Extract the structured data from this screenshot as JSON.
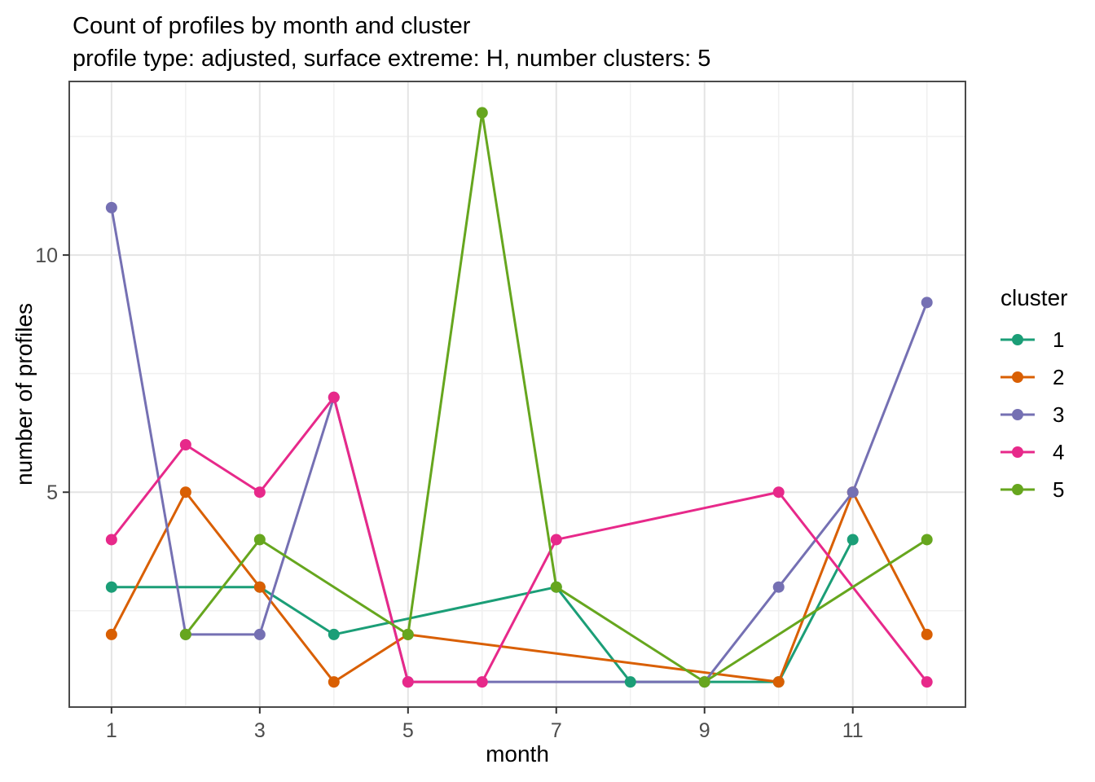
{
  "chart_data": {
    "type": "line",
    "title": "Count of profiles by month and cluster",
    "subtitle": "profile type: adjusted, surface extreme: H, number clusters: 5",
    "xlabel": "month",
    "ylabel": "number of profiles",
    "legend_title": "cluster",
    "legend_position": "right",
    "grid": true,
    "xlim": [
      0.43,
      12.52
    ],
    "ylim": [
      0.47,
      13.66
    ],
    "x_major_ticks": [
      1,
      3,
      5,
      7,
      9,
      11
    ],
    "x_minor_gridlines": [
      2,
      4,
      6,
      8,
      10,
      12
    ],
    "y_major_ticks": [
      5,
      10
    ],
    "y_minor_gridlines": [
      2.5,
      7.5,
      12.5
    ],
    "series": [
      {
        "name": "1",
        "color": "#1B9E77",
        "points": [
          [
            1,
            3
          ],
          [
            3,
            3
          ],
          [
            4,
            2
          ],
          [
            7,
            3
          ],
          [
            8,
            1
          ],
          [
            10,
            1
          ],
          [
            11,
            4
          ]
        ]
      },
      {
        "name": "2",
        "color": "#D95F02",
        "points": [
          [
            1,
            2
          ],
          [
            2,
            5
          ],
          [
            3,
            3
          ],
          [
            4,
            1
          ],
          [
            5,
            2
          ],
          [
            10,
            1
          ],
          [
            11,
            5
          ],
          [
            12,
            2
          ]
        ]
      },
      {
        "name": "3",
        "color": "#7570B3",
        "points": [
          [
            1,
            11
          ],
          [
            2,
            2
          ],
          [
            3,
            2
          ],
          [
            4,
            7
          ],
          [
            5,
            1
          ],
          [
            9,
            1
          ],
          [
            10,
            3
          ],
          [
            11,
            5
          ],
          [
            12,
            9
          ]
        ]
      },
      {
        "name": "4",
        "color": "#E7298A",
        "points": [
          [
            1,
            4
          ],
          [
            2,
            6
          ],
          [
            3,
            5
          ],
          [
            4,
            7
          ],
          [
            5,
            1
          ],
          [
            6,
            1
          ],
          [
            7,
            4
          ],
          [
            10,
            5
          ],
          [
            12,
            1
          ]
        ]
      },
      {
        "name": "5",
        "color": "#66A61E",
        "points": [
          [
            2,
            2
          ],
          [
            3,
            4
          ],
          [
            5,
            2
          ],
          [
            6,
            13
          ],
          [
            7,
            3
          ],
          [
            9,
            1
          ],
          [
            12,
            4
          ]
        ]
      }
    ],
    "style": {
      "panel_background": "#ffffff",
      "panel_border": "#4a4a4a",
      "grid_major": "#e4e4e4",
      "grid_minor": "#f0f0f0",
      "tick_color": "#333333",
      "axis_text_color": "#4d4d4d",
      "line_width": 3,
      "point_radius": 7
    }
  }
}
